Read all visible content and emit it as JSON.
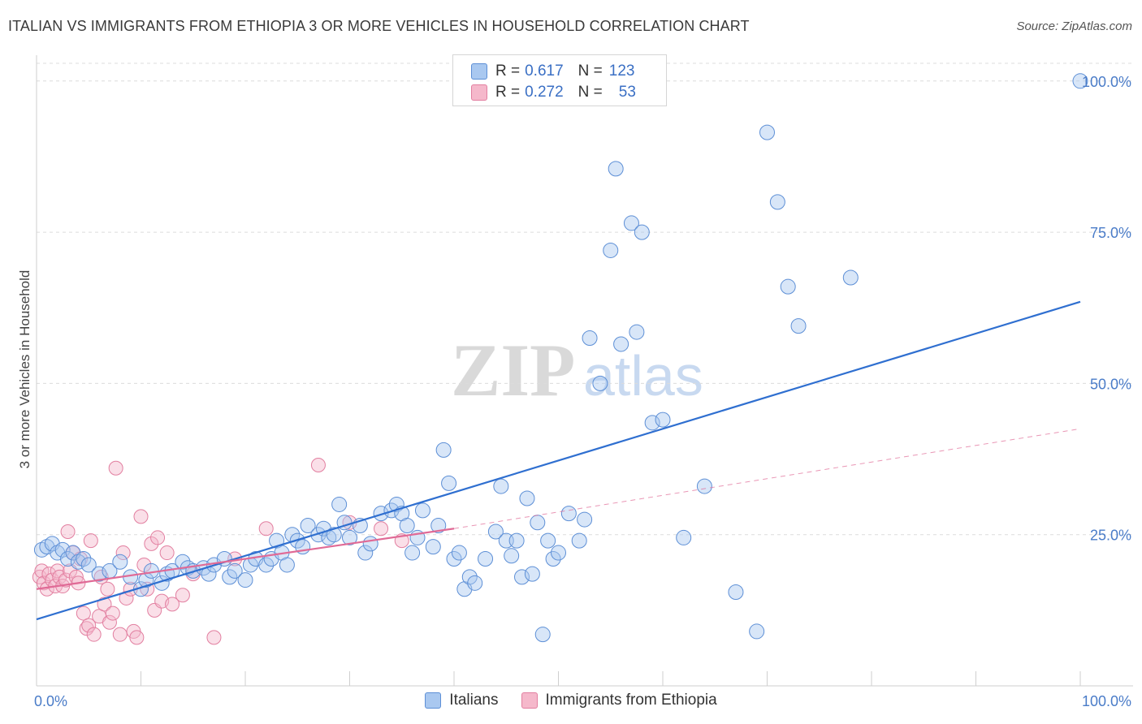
{
  "header": {
    "title": "ITALIAN VS IMMIGRANTS FROM ETHIOPIA 3 OR MORE VEHICLES IN HOUSEHOLD CORRELATION CHART",
    "source": "Source: ZipAtlas.com"
  },
  "watermark": {
    "zip": "ZIP",
    "atlas": "atlas"
  },
  "legend": {
    "rows": [
      {
        "r_label": "R =",
        "r_value": "0.617",
        "n_label": "N =",
        "n_value": "123"
      },
      {
        "r_label": "R =",
        "r_value": "0.272",
        "n_label": "N =",
        "n_value": "53"
      }
    ]
  },
  "bottom_legend": {
    "italians": "Italians",
    "ethiopia": "Immigrants from Ethiopia"
  },
  "colors": {
    "blue_fill": "#a9c8f0",
    "blue_stroke": "#5d8fd6",
    "blue_line": "#2f6fd0",
    "pink_fill": "#f5b8cb",
    "pink_stroke": "#e27fa0",
    "pink_line": "#e06a96",
    "grid": "#dcdcdc",
    "tick_text": "#4a7cc8"
  },
  "chart_data": {
    "type": "scatter",
    "title": "ITALIAN VS IMMIGRANTS FROM ETHIOPIA 3 OR MORE VEHICLES IN HOUSEHOLD CORRELATION CHART",
    "xlabel": "",
    "ylabel": "3 or more Vehicles in Household",
    "xlim": [
      0,
      100
    ],
    "ylim": [
      0,
      104
    ],
    "x_tick_labels": [
      "0.0%",
      "100.0%"
    ],
    "y_tick_values": [
      25,
      50,
      75,
      100
    ],
    "y_tick_labels": [
      "25.0%",
      "50.0%",
      "75.0%",
      "100.0%"
    ],
    "grid": "horizontal dashed",
    "legend": "bottom-center",
    "series": [
      {
        "name": "Italians",
        "color": "#a9c8f0",
        "r": 0.617,
        "n": 123,
        "trend": {
          "x": [
            0,
            100
          ],
          "y": [
            11,
            63.5
          ]
        },
        "points": [
          [
            0.5,
            22.5
          ],
          [
            1,
            23
          ],
          [
            1.5,
            23.5
          ],
          [
            2,
            22
          ],
          [
            2.5,
            22.5
          ],
          [
            3,
            21
          ],
          [
            3.5,
            22
          ],
          [
            4,
            20.5
          ],
          [
            4.5,
            21
          ],
          [
            5,
            20
          ],
          [
            6,
            18.5
          ],
          [
            7,
            19
          ],
          [
            8,
            20.5
          ],
          [
            9,
            18
          ],
          [
            10,
            16
          ],
          [
            10.5,
            17.5
          ],
          [
            11,
            19
          ],
          [
            12,
            17
          ],
          [
            12.5,
            18.5
          ],
          [
            13,
            19
          ],
          [
            14,
            20.5
          ],
          [
            14.5,
            19.5
          ],
          [
            15,
            19
          ],
          [
            16,
            19.5
          ],
          [
            16.5,
            18.5
          ],
          [
            17,
            20
          ],
          [
            18,
            21
          ],
          [
            18.5,
            18
          ],
          [
            19,
            19
          ],
          [
            20,
            17.5
          ],
          [
            20.5,
            20
          ],
          [
            21,
            21
          ],
          [
            22,
            20
          ],
          [
            22.5,
            21
          ],
          [
            23,
            24
          ],
          [
            23.5,
            22
          ],
          [
            24,
            20
          ],
          [
            24.5,
            25
          ],
          [
            25,
            24
          ],
          [
            25.5,
            23
          ],
          [
            26,
            26.5
          ],
          [
            27,
            25
          ],
          [
            27.5,
            26
          ],
          [
            28,
            24.5
          ],
          [
            28.5,
            25
          ],
          [
            29,
            30
          ],
          [
            29.5,
            27
          ],
          [
            30,
            24.5
          ],
          [
            31,
            26.5
          ],
          [
            31.5,
            22
          ],
          [
            32,
            23.5
          ],
          [
            33,
            28.5
          ],
          [
            34,
            29
          ],
          [
            34.5,
            30
          ],
          [
            35,
            28.5
          ],
          [
            35.5,
            26.5
          ],
          [
            36,
            22
          ],
          [
            36.5,
            24.5
          ],
          [
            37,
            29
          ],
          [
            38,
            23
          ],
          [
            38.5,
            26.5
          ],
          [
            39,
            39
          ],
          [
            39.5,
            33.5
          ],
          [
            40,
            21
          ],
          [
            40.5,
            22
          ],
          [
            41,
            16
          ],
          [
            41.5,
            18
          ],
          [
            42,
            17
          ],
          [
            43,
            21
          ],
          [
            44,
            25.5
          ],
          [
            44.5,
            33
          ],
          [
            45,
            24
          ],
          [
            45.5,
            21.5
          ],
          [
            46,
            24
          ],
          [
            46.5,
            18
          ],
          [
            47,
            31
          ],
          [
            47.5,
            18.5
          ],
          [
            48,
            27
          ],
          [
            48.5,
            8.5
          ],
          [
            49,
            24
          ],
          [
            49.5,
            21
          ],
          [
            50,
            22
          ],
          [
            51,
            28.5
          ],
          [
            52,
            24
          ],
          [
            52.5,
            27.5
          ],
          [
            53,
            57.5
          ],
          [
            54,
            50
          ],
          [
            55,
            72
          ],
          [
            55.5,
            85.5
          ],
          [
            56,
            56.5
          ],
          [
            57,
            76.5
          ],
          [
            57.5,
            58.5
          ],
          [
            58,
            75
          ],
          [
            59,
            43.5
          ],
          [
            60,
            44
          ],
          [
            62,
            24.5
          ],
          [
            64,
            33
          ],
          [
            67,
            15.5
          ],
          [
            69,
            9
          ],
          [
            70,
            91.5
          ],
          [
            71,
            80
          ],
          [
            72,
            66
          ],
          [
            73,
            59.5
          ],
          [
            78,
            67.5
          ],
          [
            100,
            100
          ]
        ]
      },
      {
        "name": "Immigrants from Ethiopia",
        "color": "#f5b8cb",
        "r": 0.272,
        "n": 53,
        "trend": {
          "x": [
            0,
            40
          ],
          "y": [
            16,
            26
          ]
        },
        "trend_extended": {
          "x": [
            40,
            100
          ],
          "y": [
            26,
            42.5
          ]
        },
        "points": [
          [
            0.3,
            18
          ],
          [
            0.5,
            19
          ],
          [
            0.7,
            17
          ],
          [
            1,
            16
          ],
          [
            1.2,
            18.5
          ],
          [
            1.5,
            17.5
          ],
          [
            1.8,
            16.5
          ],
          [
            2,
            19
          ],
          [
            2.2,
            18
          ],
          [
            2.5,
            16.5
          ],
          [
            2.8,
            17.5
          ],
          [
            3,
            25.5
          ],
          [
            3.2,
            19
          ],
          [
            3.5,
            22
          ],
          [
            3.8,
            18
          ],
          [
            4,
            17
          ],
          [
            4.2,
            21
          ],
          [
            4.5,
            12
          ],
          [
            4.8,
            9.5
          ],
          [
            5,
            10
          ],
          [
            5.2,
            24
          ],
          [
            5.5,
            8.5
          ],
          [
            6,
            11.5
          ],
          [
            6.2,
            18
          ],
          [
            6.5,
            13.5
          ],
          [
            6.8,
            16
          ],
          [
            7,
            10.5
          ],
          [
            7.3,
            12
          ],
          [
            7.6,
            36
          ],
          [
            8,
            8.5
          ],
          [
            8.3,
            22
          ],
          [
            8.6,
            14.5
          ],
          [
            9,
            16
          ],
          [
            9.3,
            9
          ],
          [
            9.6,
            8
          ],
          [
            10,
            28
          ],
          [
            10.3,
            20
          ],
          [
            10.6,
            16
          ],
          [
            11,
            23.5
          ],
          [
            11.3,
            12.5
          ],
          [
            11.6,
            24.5
          ],
          [
            12,
            14
          ],
          [
            12.5,
            22
          ],
          [
            13,
            13.5
          ],
          [
            14,
            15
          ],
          [
            15,
            18.5
          ],
          [
            17,
            8
          ],
          [
            19,
            21
          ],
          [
            22,
            26
          ],
          [
            27,
            36.5
          ],
          [
            30,
            27
          ],
          [
            33,
            26
          ],
          [
            35,
            24
          ]
        ]
      }
    ]
  }
}
